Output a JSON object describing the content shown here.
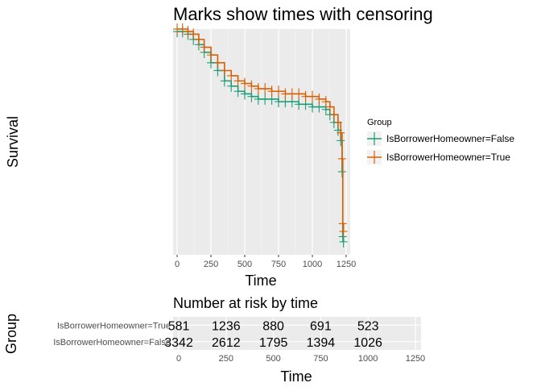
{
  "chart_data": [
    {
      "type": "line",
      "title": "Marks show times with censoring",
      "xlabel": "Time",
      "ylabel": "Survival",
      "xlim": [
        -30,
        1280
      ],
      "ylim": [
        0.13,
        1.0
      ],
      "x_ticks": [
        0,
        250,
        500,
        750,
        1000,
        1250
      ],
      "x_tick_labels": [
        "0",
        "250",
        "500",
        "750",
        "1000",
        "1250"
      ],
      "grid": true,
      "legend": {
        "title": "Group",
        "position": "right",
        "entries": [
          "IsBorrowerHomeowner=False",
          "IsBorrowerHomeowner=True"
        ]
      },
      "series": [
        {
          "name": "IsBorrowerHomeowner=False",
          "color": "#1b9e77",
          "x": [
            0,
            40,
            80,
            120,
            160,
            200,
            250,
            300,
            350,
            400,
            450,
            500,
            550,
            600,
            650,
            700,
            750,
            800,
            850,
            900,
            950,
            1000,
            1050,
            1100,
            1130,
            1160,
            1190,
            1210,
            1220,
            1225,
            1230
          ],
          "y": [
            0.99,
            0.99,
            0.98,
            0.96,
            0.94,
            0.91,
            0.87,
            0.84,
            0.8,
            0.78,
            0.76,
            0.75,
            0.74,
            0.73,
            0.73,
            0.73,
            0.72,
            0.72,
            0.72,
            0.71,
            0.71,
            0.7,
            0.7,
            0.69,
            0.67,
            0.64,
            0.61,
            0.57,
            0.45,
            0.2,
            0.18
          ]
        },
        {
          "name": "IsBorrowerHomeowner=True",
          "color": "#d95f02",
          "x": [
            0,
            40,
            80,
            120,
            160,
            200,
            250,
            300,
            350,
            400,
            450,
            500,
            550,
            600,
            650,
            700,
            750,
            800,
            850,
            900,
            950,
            1000,
            1050,
            1100,
            1130,
            1160,
            1190,
            1210,
            1220,
            1225,
            1230
          ],
          "y": [
            1.0,
            1.0,
            0.99,
            0.98,
            0.96,
            0.93,
            0.9,
            0.87,
            0.84,
            0.82,
            0.8,
            0.79,
            0.78,
            0.77,
            0.77,
            0.76,
            0.76,
            0.75,
            0.75,
            0.75,
            0.74,
            0.74,
            0.73,
            0.72,
            0.7,
            0.67,
            0.64,
            0.6,
            0.5,
            0.25,
            0.22
          ]
        }
      ]
    },
    {
      "type": "table",
      "title": "Number at risk by time",
      "xlabel": "Time",
      "ylabel": "Group",
      "xlim": [
        -30,
        1280
      ],
      "x_ticks": [
        0,
        250,
        500,
        750,
        1000,
        1250
      ],
      "x_tick_labels": [
        "0",
        "250",
        "500",
        "750",
        "1000",
        "1250"
      ],
      "grid": true,
      "times": [
        0,
        250,
        500,
        750,
        1000
      ],
      "rows": [
        {
          "name": "IsBorrowerHomeowner=True",
          "cell_labels": [
            "581",
            "1236",
            "880",
            "691",
            "523"
          ]
        },
        {
          "name": "IsBorrowerHomeowner=False",
          "cell_labels": [
            "3342",
            "2612",
            "1795",
            "1394",
            "1026"
          ]
        }
      ]
    }
  ]
}
